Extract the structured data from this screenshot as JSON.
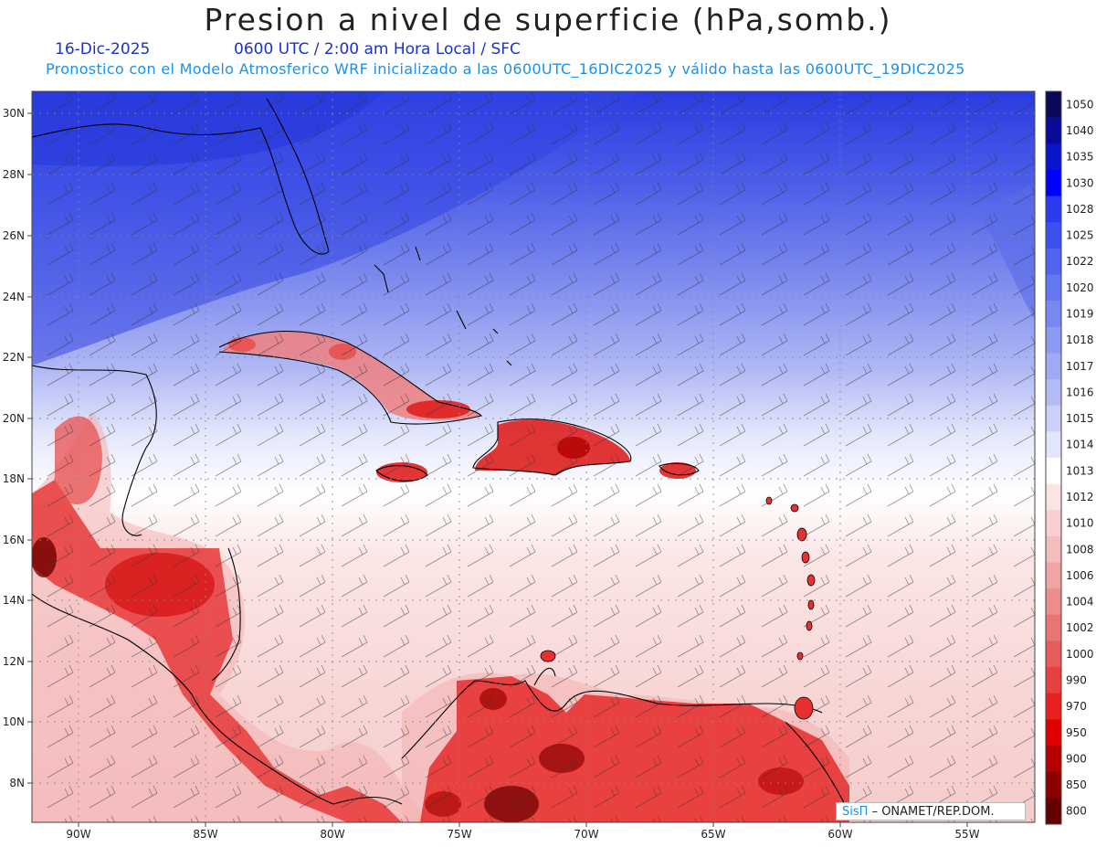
{
  "title": "Presion a nivel de superficie (hPa,somb.)",
  "date": "16-Dic-2025",
  "time_info": "0600 UTC / 2:00 am Hora Local / SFC",
  "forecast_info": "Pronostico con el Modelo Atmosferico WRF inicializado a las 0600UTC_16DIC2025 y válido hasta las  0600UTC_19DIC2025",
  "credit": {
    "logo": "SisΠ",
    "text": "– ONAMET/REP.DOM."
  },
  "map": {
    "lat_labels": [
      "30N",
      "28N",
      "26N",
      "24N",
      "22N",
      "20N",
      "18N",
      "16N",
      "14N",
      "12N",
      "10N",
      "8N"
    ],
    "lon_labels": [
      "90W",
      "85W",
      "80W",
      "75W",
      "70W",
      "65W",
      "60W",
      "55W"
    ],
    "wind_barbs_icon": "wind-barb-icon"
  },
  "colorbar": {
    "levels": [
      "1050",
      "1040",
      "1035",
      "1030",
      "1028",
      "1025",
      "1022",
      "1020",
      "1019",
      "1018",
      "1017",
      "1016",
      "1015",
      "1014",
      "1013",
      "1012",
      "1010",
      "1008",
      "1006",
      "1004",
      "1002",
      "1000",
      "990",
      "970",
      "950",
      "900",
      "850",
      "800"
    ],
    "colors": [
      "#0a0a5a",
      "#0a0a96",
      "#0a14c8",
      "#0000ff",
      "#2a3cf0",
      "#3c50f0",
      "#5064f0",
      "#6478f0",
      "#7888f0",
      "#8c9af2",
      "#a0aaf4",
      "#b4bcf6",
      "#cad0f8",
      "#e2e5fb",
      "#ffffff",
      "#fbe4e4",
      "#f8d0d0",
      "#f4bcbc",
      "#f0a4a4",
      "#ec8c8c",
      "#e87474",
      "#e45c5c",
      "#e64040",
      "#e82020",
      "#e00000",
      "#b40000",
      "#8c0000",
      "#640000"
    ]
  }
}
